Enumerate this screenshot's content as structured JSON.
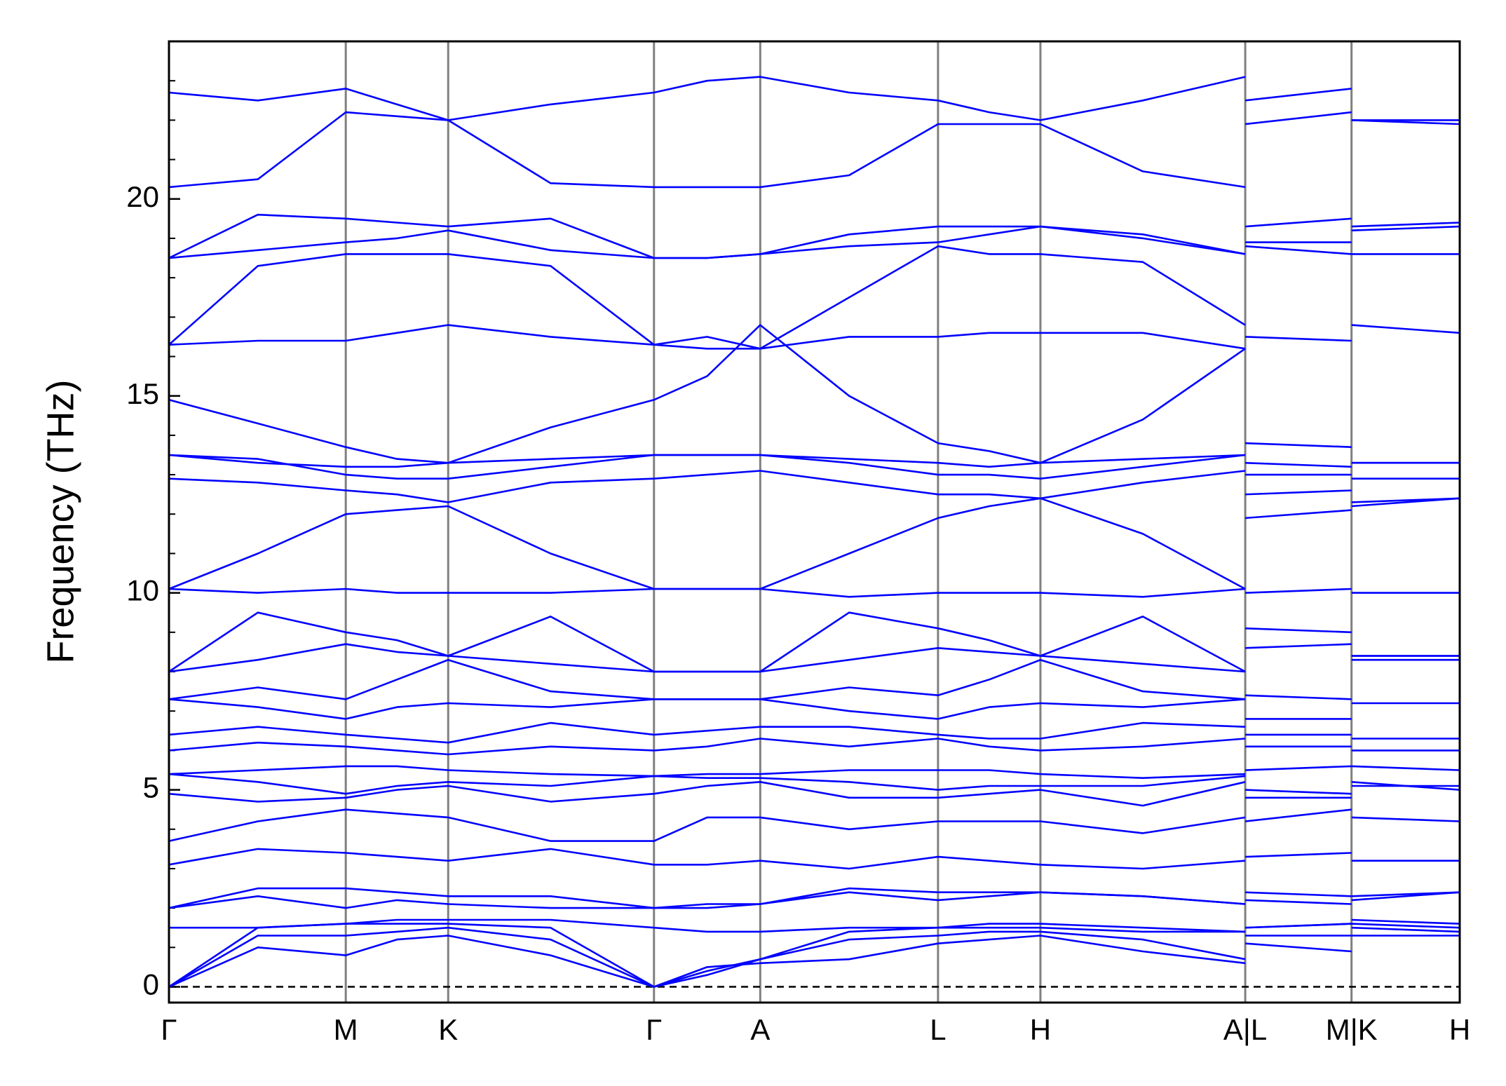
{
  "chart_data": {
    "type": "line",
    "ylabel": "Frequency (THz)",
    "color": "#0000ff",
    "xlim": [
      0,
      13.36
    ],
    "ylim": [
      -0.4,
      24
    ],
    "xticks": [
      {
        "value": 0,
        "label": "Γ"
      },
      {
        "value": 1.83,
        "label": "M"
      },
      {
        "value": 2.89,
        "label": "K"
      },
      {
        "value": 5.02,
        "label": "Γ"
      },
      {
        "value": 6.12,
        "label": "A"
      },
      {
        "value": 7.96,
        "label": "L"
      },
      {
        "value": 9.02,
        "label": "H"
      },
      {
        "value": 11.14,
        "label": "A|L"
      },
      {
        "value": 12.24,
        "label": "M|K"
      },
      {
        "value": 13.36,
        "label": "H"
      }
    ],
    "yticks": [
      0,
      5,
      10,
      15,
      20
    ],
    "yminorticks": [
      1,
      2,
      3,
      4,
      6,
      7,
      8,
      9,
      11,
      12,
      13,
      14,
      16,
      17,
      18,
      19,
      21,
      22,
      23
    ],
    "reference_line": 0,
    "x": [
      0,
      0.92,
      1.83,
      2.36,
      2.89,
      3.95,
      5.02,
      5.57,
      6.12,
      7.04,
      7.96,
      8.49,
      9.02,
      10.08,
      11.14,
      11.14,
      11.14,
      12.24,
      12.24,
      12.24,
      13.36
    ],
    "series": [
      {
        "values": [
          0,
          1.0,
          0.8,
          1.2,
          1.3,
          0.8,
          0,
          0.5,
          0.6,
          0.7,
          1.1,
          1.2,
          1.3,
          0.9,
          0.6,
          null,
          1.1,
          0.9,
          null,
          1.3,
          1.3
        ]
      },
      {
        "values": [
          0,
          1.3,
          1.3,
          1.4,
          1.5,
          1.2,
          0,
          0.4,
          0.7,
          1.2,
          1.3,
          1.4,
          1.4,
          1.2,
          0.7,
          null,
          1.3,
          1.3,
          null,
          1.5,
          1.4
        ]
      },
      {
        "values": [
          0,
          1.5,
          1.6,
          1.6,
          1.6,
          1.5,
          0,
          0.3,
          0.7,
          1.4,
          1.5,
          1.5,
          1.5,
          1.4,
          1.4,
          null,
          1.5,
          1.6,
          null,
          1.6,
          1.5
        ]
      },
      {
        "values": [
          1.5,
          1.5,
          1.6,
          1.7,
          1.7,
          1.7,
          1.5,
          1.4,
          1.4,
          1.5,
          1.5,
          1.6,
          1.6,
          1.5,
          1.4,
          null,
          1.5,
          1.6,
          null,
          1.7,
          1.6
        ]
      },
      {
        "values": [
          2.0,
          2.3,
          2.0,
          2.2,
          2.1,
          2.0,
          2.0,
          2.0,
          2.1,
          2.4,
          2.2,
          2.3,
          2.4,
          2.3,
          2.1,
          null,
          2.2,
          2.1,
          null,
          2.3,
          2.4
        ]
      },
      {
        "values": [
          2.0,
          2.5,
          2.5,
          2.4,
          2.3,
          2.3,
          2.0,
          2.1,
          2.1,
          2.5,
          2.4,
          2.4,
          2.4,
          2.3,
          2.1,
          null,
          2.4,
          2.3,
          null,
          2.2,
          2.4
        ]
      },
      {
        "values": [
          3.1,
          3.5,
          3.4,
          3.3,
          3.2,
          3.5,
          3.1,
          3.1,
          3.2,
          3.0,
          3.3,
          3.2,
          3.1,
          3.0,
          3.2,
          null,
          3.3,
          3.4,
          null,
          3.2,
          3.2
        ]
      },
      {
        "values": [
          3.7,
          4.2,
          4.5,
          4.4,
          4.3,
          3.7,
          3.7,
          4.3,
          4.3,
          4.0,
          4.2,
          4.2,
          4.2,
          3.9,
          4.3,
          null,
          4.2,
          4.5,
          null,
          4.3,
          4.2
        ]
      },
      {
        "values": [
          4.9,
          4.7,
          4.8,
          5.0,
          5.1,
          4.7,
          4.9,
          5.1,
          5.2,
          4.8,
          4.8,
          4.9,
          5.0,
          4.6,
          5.2,
          null,
          4.8,
          4.8,
          null,
          5.1,
          5.1
        ]
      },
      {
        "values": [
          5.4,
          5.2,
          4.9,
          5.1,
          5.2,
          5.1,
          5.35,
          5.3,
          5.3,
          5.2,
          5.0,
          5.1,
          5.1,
          5.1,
          5.35,
          null,
          5.0,
          4.9,
          null,
          5.2,
          5.0
        ]
      },
      {
        "values": [
          5.4,
          5.5,
          5.6,
          5.6,
          5.5,
          5.4,
          5.35,
          5.4,
          5.4,
          5.5,
          5.5,
          5.5,
          5.4,
          5.3,
          5.4,
          null,
          5.5,
          5.6,
          null,
          5.6,
          5.5
        ]
      },
      {
        "values": [
          6.0,
          6.2,
          6.1,
          6.0,
          5.9,
          6.1,
          6.0,
          6.1,
          6.3,
          6.1,
          6.3,
          6.1,
          6.0,
          6.1,
          6.3,
          null,
          6.1,
          6.1,
          null,
          6.0,
          6.0
        ]
      },
      {
        "values": [
          6.4,
          6.6,
          6.4,
          6.3,
          6.2,
          6.7,
          6.4,
          6.5,
          6.6,
          6.6,
          6.4,
          6.3,
          6.3,
          6.7,
          6.6,
          null,
          6.4,
          6.4,
          null,
          6.3,
          6.3
        ]
      },
      {
        "values": [
          7.3,
          7.1,
          6.8,
          7.1,
          7.2,
          7.1,
          7.3,
          7.3,
          7.3,
          7.0,
          6.8,
          7.1,
          7.2,
          7.1,
          7.3,
          null,
          6.8,
          6.8,
          null,
          7.2,
          7.2
        ]
      },
      {
        "values": [
          7.3,
          7.6,
          7.3,
          7.8,
          8.3,
          7.5,
          7.3,
          7.3,
          7.3,
          7.6,
          7.4,
          7.8,
          8.3,
          7.5,
          7.3,
          null,
          7.4,
          7.3,
          null,
          8.3,
          8.3
        ]
      },
      {
        "values": [
          8.0,
          8.3,
          8.7,
          8.5,
          8.4,
          8.2,
          8.0,
          8.0,
          8.0,
          8.3,
          8.6,
          8.5,
          8.4,
          8.2,
          8.0,
          null,
          8.6,
          8.7,
          null,
          8.4,
          8.4
        ]
      },
      {
        "values": [
          8.0,
          9.5,
          9.0,
          8.8,
          8.4,
          9.4,
          8.0,
          8.0,
          8.0,
          9.5,
          9.1,
          8.8,
          8.4,
          9.4,
          8.0,
          null,
          9.1,
          9.0,
          null,
          8.4,
          8.4
        ]
      },
      {
        "values": [
          10.1,
          10.0,
          10.1,
          10.0,
          10.0,
          10.0,
          10.1,
          10.1,
          10.1,
          9.9,
          10.0,
          10.0,
          10.0,
          9.9,
          10.1,
          null,
          10.0,
          10.1,
          null,
          10.0,
          10.0
        ]
      },
      {
        "values": [
          10.1,
          11.0,
          12.0,
          12.1,
          12.2,
          11.0,
          10.1,
          10.1,
          10.1,
          11.0,
          11.9,
          12.2,
          12.4,
          11.5,
          10.1,
          null,
          11.9,
          12.1,
          null,
          12.3,
          12.4
        ]
      },
      {
        "values": [
          12.9,
          12.8,
          12.6,
          12.5,
          12.3,
          12.8,
          12.9,
          13.0,
          13.1,
          12.8,
          12.5,
          12.5,
          12.4,
          12.8,
          13.1,
          null,
          12.5,
          12.6,
          null,
          12.2,
          12.4
        ]
      },
      {
        "values": [
          13.5,
          13.4,
          13.0,
          12.9,
          12.9,
          13.2,
          13.5,
          13.5,
          13.5,
          13.3,
          13.0,
          13.0,
          12.9,
          13.2,
          13.5,
          null,
          13.0,
          13.0,
          null,
          12.9,
          12.9
        ]
      },
      {
        "values": [
          13.5,
          13.3,
          13.2,
          13.2,
          13.3,
          13.4,
          13.5,
          13.5,
          13.5,
          13.4,
          13.3,
          13.2,
          13.3,
          13.4,
          13.5,
          null,
          13.3,
          13.2,
          null,
          13.3,
          13.3
        ]
      },
      {
        "values": [
          14.9,
          14.3,
          13.7,
          13.4,
          13.3,
          14.2,
          14.9,
          15.5,
          16.8,
          15.0,
          13.8,
          13.6,
          13.3,
          14.4,
          16.2,
          null,
          13.8,
          13.7,
          null,
          13.3,
          13.3
        ]
      },
      {
        "values": [
          16.3,
          16.4,
          16.4,
          16.6,
          16.8,
          16.5,
          16.3,
          16.2,
          16.2,
          16.5,
          16.5,
          16.6,
          16.6,
          16.6,
          16.2,
          null,
          16.5,
          16.4,
          null,
          16.8,
          16.6
        ]
      },
      {
        "values": [
          16.3,
          18.3,
          18.6,
          18.6,
          18.6,
          18.3,
          16.3,
          16.5,
          16.2,
          17.5,
          18.8,
          18.6,
          18.6,
          18.4,
          16.8,
          null,
          18.8,
          18.6,
          null,
          18.6,
          18.6
        ]
      },
      {
        "values": [
          18.5,
          18.7,
          18.9,
          19.0,
          19.2,
          18.7,
          18.5,
          18.5,
          18.6,
          18.8,
          18.9,
          19.1,
          19.3,
          19.0,
          18.6,
          null,
          18.9,
          18.9,
          null,
          19.2,
          19.3
        ]
      },
      {
        "values": [
          18.5,
          19.6,
          19.5,
          19.4,
          19.3,
          19.5,
          18.5,
          18.5,
          18.6,
          19.1,
          19.3,
          19.3,
          19.3,
          19.1,
          18.6,
          null,
          19.3,
          19.5,
          null,
          19.3,
          19.4
        ]
      },
      {
        "values": [
          20.3,
          20.5,
          22.2,
          22.1,
          22.0,
          20.4,
          20.3,
          20.3,
          20.3,
          20.6,
          21.9,
          21.9,
          21.9,
          20.7,
          20.3,
          null,
          21.9,
          22.2,
          null,
          22.0,
          21.9
        ]
      },
      {
        "values": [
          22.7,
          22.5,
          22.8,
          22.4,
          22.0,
          22.4,
          22.7,
          23.0,
          23.1,
          22.7,
          22.5,
          22.2,
          22.0,
          22.5,
          23.1,
          null,
          22.5,
          22.8,
          null,
          22.0,
          22.0
        ]
      }
    ]
  }
}
